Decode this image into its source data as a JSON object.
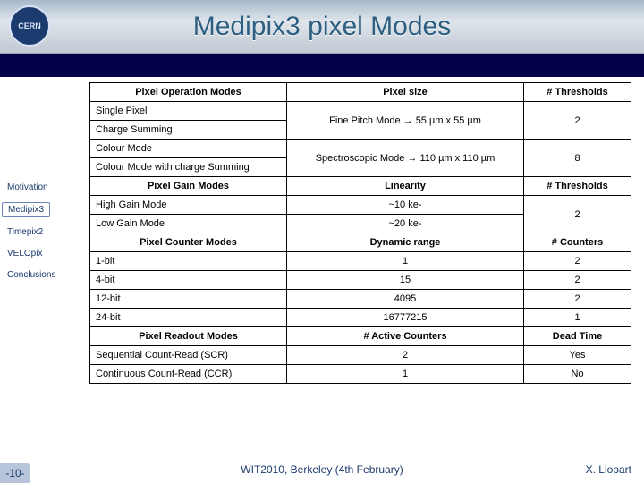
{
  "title": "Medipix3 pixel Modes",
  "logo_label": "CERN",
  "nav": {
    "items": [
      "Motivation",
      "Medipix3",
      "Timepix2",
      "VELOpix",
      "Conclusions"
    ],
    "boxed_index": 1
  },
  "tables": {
    "operation": {
      "headers": [
        "Pixel Operation Modes",
        "Pixel size",
        "# Thresholds"
      ],
      "rows": [
        {
          "c1": "Single Pixel",
          "c2": "Fine Pitch Mode → 55 µm x 55 µm",
          "c3": "2",
          "span_c2": 2
        },
        {
          "c1": "Charge Summing"
        },
        {
          "c1": "Colour Mode",
          "c2": "Spectroscopic Mode → 110 µm x 110 µm",
          "c3": "8",
          "span_c2": 2
        },
        {
          "c1": "Colour Mode with charge Summing"
        }
      ]
    },
    "gain": {
      "headers": [
        "Pixel Gain Modes",
        "Linearity",
        "# Thresholds"
      ],
      "rows": [
        {
          "c1": "High Gain Mode",
          "c2": "~10 ke-",
          "c3": "2",
          "span_c3": 2
        },
        {
          "c1": "Low Gain Mode",
          "c2": "~20 ke-"
        }
      ]
    },
    "counter": {
      "headers": [
        "Pixel Counter Modes",
        "Dynamic range",
        "# Counters"
      ],
      "rows": [
        {
          "c1": "1-bit",
          "c2": "1",
          "c3": "2"
        },
        {
          "c1": "4-bit",
          "c2": "15",
          "c3": "2"
        },
        {
          "c1": "12-bit",
          "c2": "4095",
          "c3": "2"
        },
        {
          "c1": "24-bit",
          "c2": "16777215",
          "c3": "1"
        }
      ]
    },
    "readout": {
      "headers": [
        "Pixel Readout Modes",
        "# Active Counters",
        "Dead Time"
      ],
      "rows": [
        {
          "c1": "Sequential Count-Read (SCR)",
          "c2": "2",
          "c3": "Yes"
        },
        {
          "c1": "Continuous Count-Read (CCR)",
          "c2": "1",
          "c3": "No"
        }
      ]
    }
  },
  "footer": {
    "page": "-10-",
    "center": "WIT2010, Berkeley (4th February)",
    "right": "X. Llopart"
  },
  "colors": {
    "title_color": "#2d5f83",
    "band_color": "#05004a",
    "nav_color": "#1b3a6d",
    "titlebar_gradient": [
      "#a8b8ca",
      "#dfe5eb",
      "#c0c8d2"
    ]
  }
}
